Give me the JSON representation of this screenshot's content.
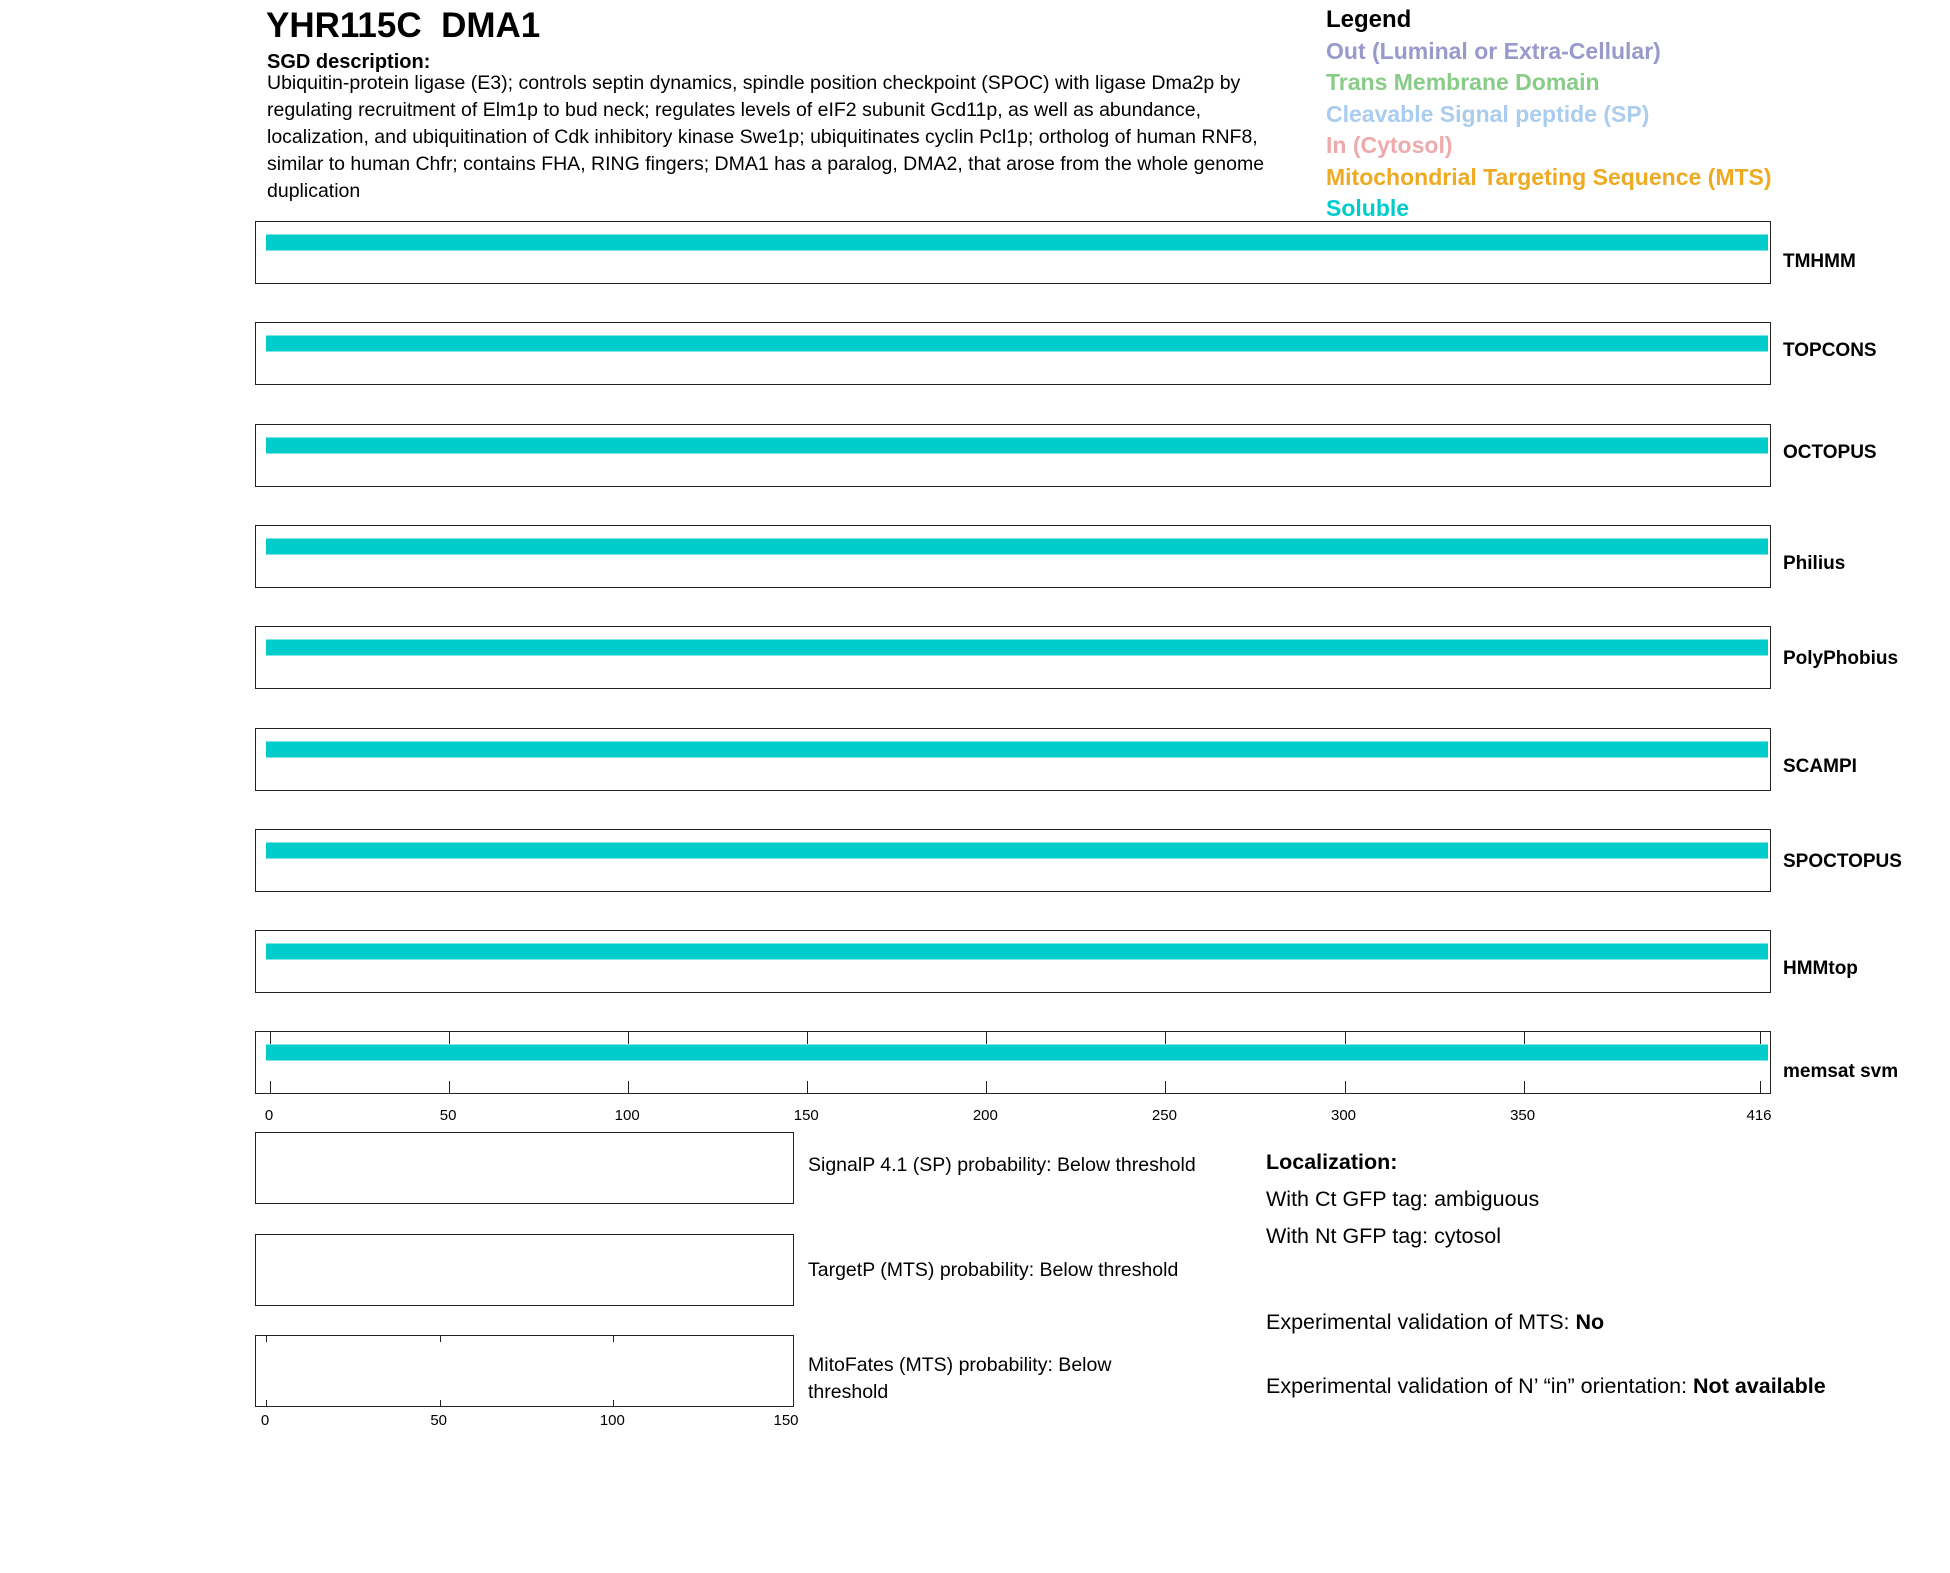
{
  "header": {
    "title": "YHR115C  DMA1",
    "sgd_label": "SGD description:",
    "sgd_text": "Ubiquitin-protein ligase (E3); controls septin dynamics, spindle position checkpoint (SPOC) with ligase Dma2p by regulating recruitment of Elm1p to bud neck; regulates levels of eIF2 subunit Gcd11p, as well as abundance, localization, and ubiquitination of Cdk inhibitory kinase Swe1p; ubiquitinates cyclin Pcl1p; ortholog of human RNF8, similar to human Chfr; contains FHA, RING fingers; DMA1 has a paralog, DMA2, that arose from the whole genome duplication"
  },
  "legend": {
    "title": "Legend",
    "items": [
      {
        "label": "Out (Luminal or Extra-Cellular)",
        "color": "#9999cc"
      },
      {
        "label": "Trans Membrane Domain",
        "color": "#88cc88"
      },
      {
        "label": "Cleavable Signal peptide (SP)",
        "color": "#aaccee"
      },
      {
        "label": "In (Cytosol)",
        "color": "#eeaaaa"
      },
      {
        "label": "Mitochondrial Targeting Sequence (MTS)",
        "color": "#eeaa22"
      },
      {
        "label": "Soluble",
        "color": "#00cccc"
      }
    ]
  },
  "chart_data": {
    "type": "bar",
    "x_range": [
      0,
      416
    ],
    "xticks": [
      0,
      50,
      100,
      150,
      200,
      250,
      300,
      350,
      416
    ],
    "tracks": [
      {
        "name": "TMHMM",
        "segments": [
          {
            "start": 1,
            "end": 416,
            "type": "Soluble"
          }
        ]
      },
      {
        "name": "TOPCONS",
        "segments": [
          {
            "start": 1,
            "end": 416,
            "type": "Soluble"
          }
        ]
      },
      {
        "name": "OCTOPUS",
        "segments": [
          {
            "start": 1,
            "end": 416,
            "type": "Soluble"
          }
        ]
      },
      {
        "name": "Philius",
        "segments": [
          {
            "start": 1,
            "end": 416,
            "type": "Soluble"
          }
        ]
      },
      {
        "name": "PolyPhobius",
        "segments": [
          {
            "start": 1,
            "end": 416,
            "type": "Soluble"
          }
        ]
      },
      {
        "name": "SCAMPI",
        "segments": [
          {
            "start": 1,
            "end": 416,
            "type": "Soluble"
          }
        ]
      },
      {
        "name": "SPOCTOPUS",
        "segments": [
          {
            "start": 1,
            "end": 416,
            "type": "Soluble"
          }
        ]
      },
      {
        "name": "HMMtop",
        "segments": [
          {
            "start": 1,
            "end": 416,
            "type": "Soluble"
          }
        ]
      },
      {
        "name": "memsat svm",
        "segments": [
          {
            "start": 1,
            "end": 416,
            "type": "Soluble"
          }
        ]
      }
    ],
    "probability_x_range": [
      0,
      150
    ],
    "probability_xticks": [
      0,
      50,
      100,
      150
    ]
  },
  "probabilities": [
    {
      "label": "SignalP 4.1 (SP) probability: Below threshold"
    },
    {
      "label": "TargetP (MTS) probability: Below threshold"
    },
    {
      "label": "MitoFates (MTS) probability: Below threshold"
    }
  ],
  "localization": {
    "title": "Localization:",
    "ct": "With Ct GFP tag: ambiguous",
    "nt": "With Nt GFP tag: cytosol",
    "mts_label": "Experimental validation of MTS: ",
    "mts_value": "No",
    "orient_label": "Experimental validation of N’ “in” orientation: ",
    "orient_value": "Not available"
  }
}
